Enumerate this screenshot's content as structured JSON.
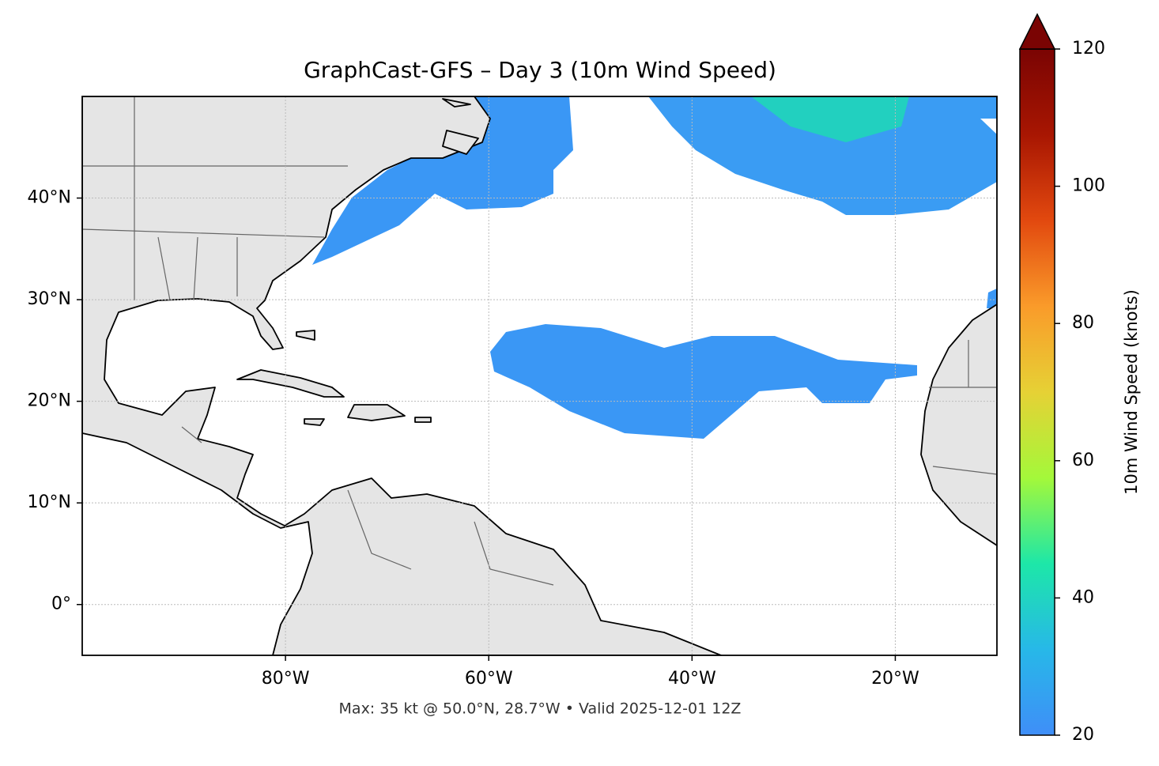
{
  "chart_data": {
    "type": "map",
    "title": "GraphCast-GFS – Day 3 (10m Wind Speed)",
    "annotation": "Max: 35 kt @ 50.0°N, 28.7°W • Valid 2025-12-01 12Z",
    "xlim": [
      -100,
      -10
    ],
    "ylim": [
      -5,
      50
    ],
    "xticks": [
      {
        "value": -80,
        "label": "80°W"
      },
      {
        "value": -60,
        "label": "60°W"
      },
      {
        "value": -40,
        "label": "40°W"
      },
      {
        "value": -20,
        "label": "20°W"
      }
    ],
    "yticks": [
      {
        "value": 0,
        "label": "0°"
      },
      {
        "value": 10,
        "label": "10°N"
      },
      {
        "value": 20,
        "label": "20°N"
      },
      {
        "value": 30,
        "label": "30°N"
      },
      {
        "value": 40,
        "label": "40°N"
      }
    ],
    "grid": true,
    "colorbar": {
      "label": "10m Wind Speed (knots)",
      "lim": [
        20,
        120
      ],
      "ticks": [
        20,
        40,
        60,
        80,
        100,
        120
      ],
      "colors": [
        "#3f8ef8",
        "#27b8e8",
        "#1de7a8",
        "#a4f83a",
        "#e6d135",
        "#fa9b2a",
        "#e2490f",
        "#a81602",
        "#7a0403"
      ]
    }
  }
}
